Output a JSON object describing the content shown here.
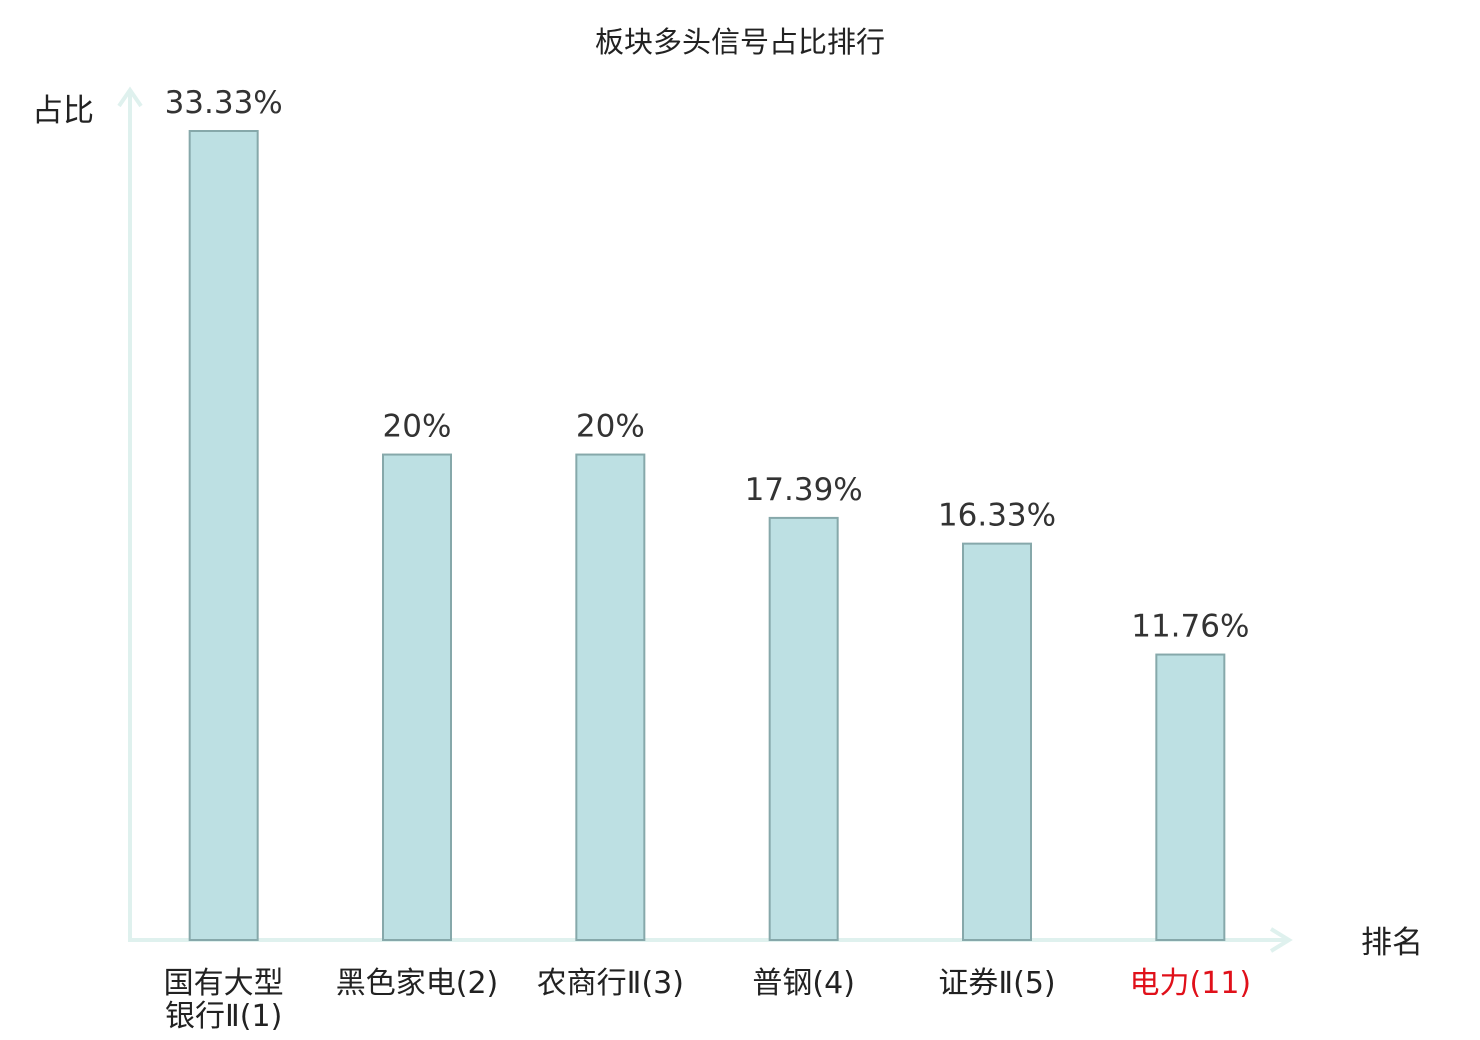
{
  "chart_data": {
    "type": "bar",
    "title": "板块多头信号占比排行",
    "ylabel": "占比",
    "xlabel": "排名",
    "categories": [
      [
        "国有大型",
        "银行Ⅱ(1)"
      ],
      [
        "黑色家电(2)"
      ],
      [
        "农商行Ⅱ(3)"
      ],
      [
        "普钢(4)"
      ],
      [
        "证券Ⅱ(5)"
      ],
      [
        "电力(11)"
      ]
    ],
    "values": [
      33.33,
      20,
      20,
      17.39,
      16.33,
      11.76
    ],
    "value_labels": [
      "33.33%",
      "20%",
      "20%",
      "17.39%",
      "16.33%",
      "11.76%"
    ],
    "highlight_index": 5,
    "ylim": [
      0,
      33.33
    ],
    "grid": false,
    "colors": {
      "bar_fill": "#bde0e3",
      "bar_stroke": "#86a8aa",
      "axis": "#dff1ee",
      "highlight_label": "#e0101a"
    }
  }
}
